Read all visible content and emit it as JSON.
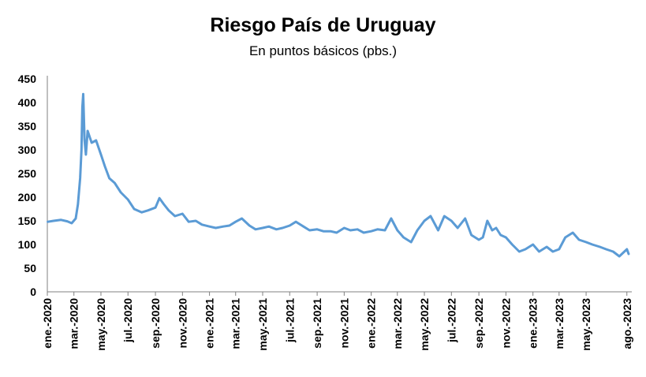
{
  "chart_data": {
    "type": "line",
    "title": "Riesgo País de Uruguay",
    "subtitle": "En puntos básicos (pbs.)",
    "xlabel": "",
    "ylabel": "",
    "ylim": [
      0,
      450
    ],
    "yticks": [
      0,
      50,
      100,
      150,
      200,
      250,
      300,
      350,
      400,
      450
    ],
    "x_tick_labels": [
      "ene.-2020",
      "mar.-2020",
      "may.-2020",
      "jul.-2020",
      "sep.-2020",
      "nov.-2020",
      "ene.-2021",
      "mar.-2021",
      "may.-2021",
      "jul.-2021",
      "sep.-2021",
      "nov.-2021",
      "ene.-2022",
      "mar.-2022",
      "may.-2022",
      "jul.-2022",
      "sep.-2022",
      "nov.-2022",
      "ene.-2023",
      "mar.-2023",
      "may.-2023",
      "ago.-2023"
    ],
    "grid": false,
    "legend": "none",
    "line_color": "#5B9BD5",
    "series": [
      {
        "x": [
          "2020-01-02",
          "2020-01-15",
          "2020-02-01",
          "2020-02-15",
          "2020-02-25",
          "2020-03-05",
          "2020-03-10",
          "2020-03-15",
          "2020-03-18",
          "2020-03-20",
          "2020-03-22",
          "2020-03-25",
          "2020-03-28",
          "2020-04-01",
          "2020-04-10",
          "2020-04-20",
          "2020-05-01",
          "2020-05-10",
          "2020-05-20",
          "2020-06-01",
          "2020-06-15",
          "2020-07-01",
          "2020-07-15",
          "2020-08-01",
          "2020-08-15",
          "2020-09-01",
          "2020-09-10",
          "2020-09-20",
          "2020-10-01",
          "2020-10-15",
          "2020-11-01",
          "2020-11-15",
          "2020-12-01",
          "2020-12-15",
          "2021-01-01",
          "2021-01-15",
          "2021-02-01",
          "2021-02-15",
          "2021-03-01",
          "2021-03-15",
          "2021-04-01",
          "2021-04-15",
          "2021-05-01",
          "2021-05-15",
          "2021-06-01",
          "2021-06-15",
          "2021-07-01",
          "2021-07-15",
          "2021-08-01",
          "2021-08-15",
          "2021-09-01",
          "2021-09-15",
          "2021-10-01",
          "2021-10-15",
          "2021-11-01",
          "2021-11-15",
          "2021-12-01",
          "2021-12-15",
          "2022-01-01",
          "2022-01-15",
          "2022-02-01",
          "2022-02-15",
          "2022-03-01",
          "2022-03-15",
          "2022-04-01",
          "2022-04-15",
          "2022-05-01",
          "2022-05-15",
          "2022-06-01",
          "2022-06-15",
          "2022-07-01",
          "2022-07-15",
          "2022-08-01",
          "2022-08-15",
          "2022-09-01",
          "2022-09-10",
          "2022-09-20",
          "2022-10-01",
          "2022-10-10",
          "2022-10-20",
          "2022-11-01",
          "2022-11-15",
          "2022-12-01",
          "2022-12-15",
          "2023-01-01",
          "2023-01-15",
          "2023-02-01",
          "2023-02-15",
          "2023-03-01",
          "2023-03-15",
          "2023-04-01",
          "2023-04-15",
          "2023-05-01",
          "2023-05-15",
          "2023-06-01",
          "2023-06-15",
          "2023-07-01",
          "2023-07-15",
          "2023-08-01",
          "2023-08-05"
        ],
        "values": [
          148,
          150,
          152,
          149,
          145,
          155,
          185,
          240,
          300,
          390,
          418,
          320,
          290,
          340,
          315,
          320,
          290,
          265,
          240,
          230,
          210,
          195,
          175,
          168,
          172,
          178,
          198,
          185,
          172,
          160,
          165,
          148,
          150,
          142,
          138,
          135,
          138,
          140,
          148,
          155,
          140,
          132,
          135,
          138,
          132,
          135,
          140,
          148,
          138,
          130,
          132,
          128,
          128,
          125,
          135,
          130,
          132,
          125,
          128,
          132,
          130,
          155,
          130,
          115,
          105,
          130,
          150,
          160,
          130,
          160,
          150,
          135,
          155,
          120,
          110,
          115,
          150,
          130,
          135,
          120,
          115,
          100,
          85,
          90,
          100,
          85,
          95,
          85,
          90,
          115,
          125,
          110,
          105,
          100,
          95,
          90,
          85,
          75,
          90,
          80
        ]
      }
    ]
  }
}
